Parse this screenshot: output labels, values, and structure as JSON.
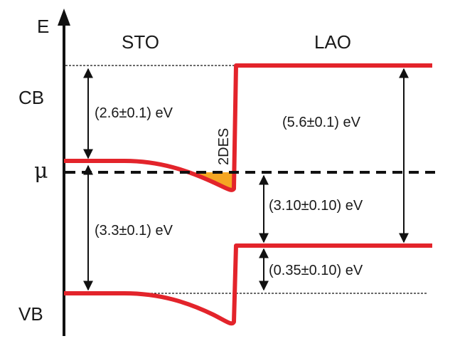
{
  "axis": {
    "energy_label": "E"
  },
  "materials": {
    "left": "STO",
    "right": "LAO"
  },
  "levels": {
    "conduction_band": "CB",
    "chemical_potential": "μ",
    "valence_band": "VB"
  },
  "interface_state": "2DES",
  "gaps": {
    "sto_cb_offset": "(2.6±0.1) eV",
    "sto_vb_offset": "(3.3±0.1) eV",
    "lao_band_gap": "(5.6±0.1) eV",
    "lao_vb_to_mu": "(3.10±0.10) eV",
    "valence_band_offset": "(0.35±0.10) eV"
  },
  "colors": {
    "band_edge": "#e3242b",
    "electron_pocket": "#f5a623",
    "lines": "#111111"
  }
}
